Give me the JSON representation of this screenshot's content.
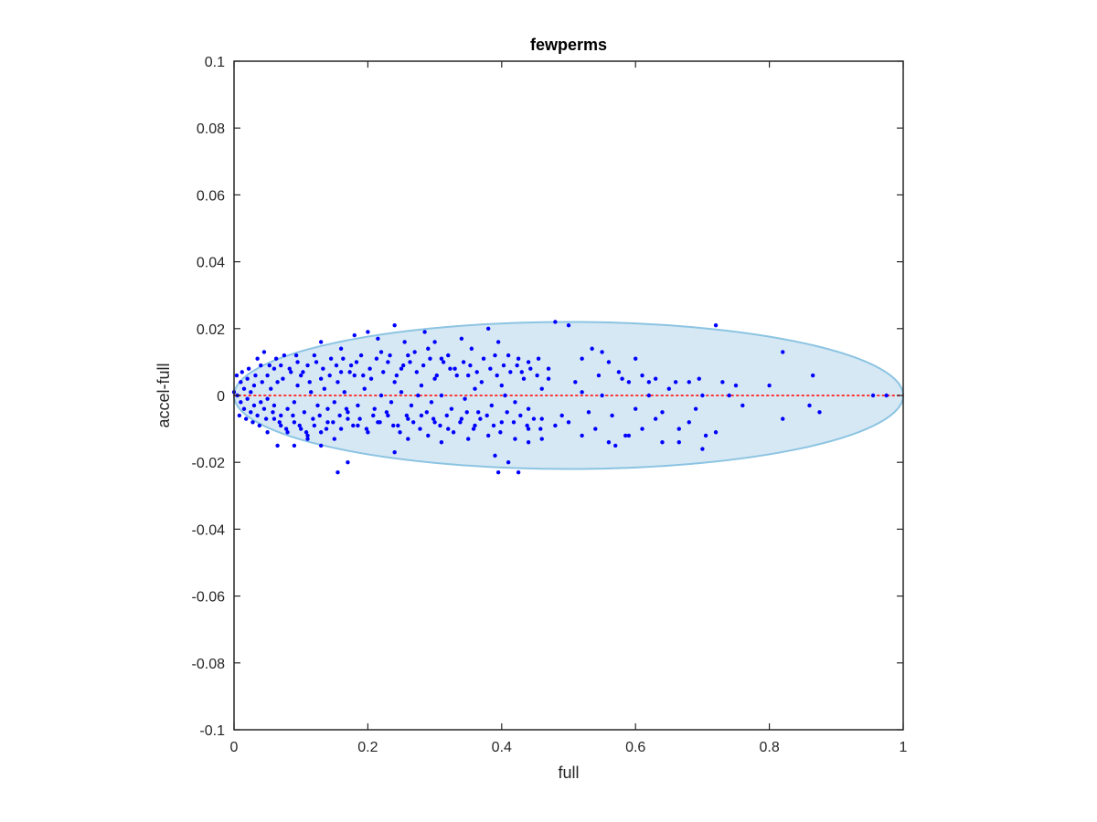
{
  "chart_data": {
    "type": "scatter",
    "title": "fewperms",
    "xlabel": "full",
    "ylabel": "accel-full",
    "xlim": [
      0,
      1
    ],
    "ylim": [
      -0.1,
      0.1
    ],
    "xticks": [
      0,
      0.2,
      0.4,
      0.6,
      0.8,
      1
    ],
    "xtick_labels": [
      "0",
      "0.2",
      "0.4",
      "0.6",
      "0.8",
      "1"
    ],
    "yticks": [
      -0.1,
      -0.08,
      -0.06,
      -0.04,
      -0.02,
      0,
      0.02,
      0.04,
      0.06,
      0.08,
      0.1
    ],
    "ytick_labels": [
      "-0.1",
      "-0.08",
      "-0.06",
      "-0.04",
      "-0.02",
      "0",
      "0.02",
      "0.04",
      "0.06",
      "0.08",
      "0.1"
    ],
    "grid": false,
    "colors": {
      "points": "#0000ff",
      "zero_line": "#ff3333",
      "ellipse_fill": "#d6e8f4",
      "ellipse_stroke": "#8cc4e2",
      "axes": "#262626"
    },
    "ellipse": {
      "center": [
        0.5,
        0
      ],
      "x_radius": 0.5,
      "y_radius": 0.022
    },
    "reference_line": {
      "y": 0,
      "x_range": [
        0,
        1
      ],
      "style": "dotted"
    },
    "series": [
      {
        "points": [
          [
            0.16,
            0.014
          ],
          [
            0.13,
            0.016
          ],
          [
            0.18,
            0.018
          ],
          [
            0.2,
            0.019
          ],
          [
            0.215,
            0.017
          ],
          [
            0.24,
            0.021
          ],
          [
            0.255,
            0.016
          ],
          [
            0.27,
            0.013
          ],
          [
            0.285,
            0.019
          ],
          [
            0.3,
            0.016
          ],
          [
            0.32,
            0.012
          ],
          [
            0.34,
            0.017
          ],
          [
            0.355,
            0.014
          ],
          [
            0.38,
            0.02
          ],
          [
            0.395,
            0.016
          ],
          [
            0.41,
            0.012
          ],
          [
            0.425,
            0.011
          ],
          [
            0.44,
            0.01
          ],
          [
            0.455,
            0.011
          ],
          [
            0.47,
            0.008
          ],
          [
            0.48,
            0.022
          ],
          [
            0.5,
            0.021
          ],
          [
            0.52,
            0.011
          ],
          [
            0.535,
            0.014
          ],
          [
            0.55,
            0.013
          ],
          [
            0.56,
            0.01
          ],
          [
            0.575,
            0.007
          ],
          [
            0.59,
            0.004
          ],
          [
            0.6,
            0.011
          ],
          [
            0.61,
            0.006
          ],
          [
            0.63,
            0.005
          ],
          [
            0.65,
            0.002
          ],
          [
            0.68,
            0.004
          ],
          [
            0.695,
            0.005
          ],
          [
            0.72,
            0.021
          ],
          [
            0.75,
            0.003
          ],
          [
            0.8,
            0.003
          ],
          [
            0.82,
            0.013
          ],
          [
            0.865,
            0.006
          ],
          [
            0.33,
            0.008
          ],
          [
            0.35,
            0.006
          ],
          [
            0.37,
            0.004
          ],
          [
            0.39,
            0.012
          ],
          [
            0.43,
            0.007
          ],
          [
            0.31,
            0.011
          ],
          [
            0.29,
            0.014
          ],
          [
            0.26,
            0.012
          ],
          [
            0.23,
            0.01
          ],
          [
            0.25,
            0.008
          ],
          [
            0.22,
            0.013
          ],
          [
            0.19,
            0.012
          ],
          [
            0.175,
            0.009
          ],
          [
            0.16,
            0.007
          ],
          [
            0.145,
            0.011
          ],
          [
            0.12,
            0.012
          ],
          [
            0.11,
            0.009
          ],
          [
            0.095,
            0.01
          ],
          [
            0.085,
            0.007
          ],
          [
            0.07,
            0.009
          ],
          [
            0.06,
            0.008
          ],
          [
            0.05,
            0.006
          ],
          [
            0.04,
            0.009
          ],
          [
            0.035,
            0.011
          ],
          [
            0.045,
            0.013
          ],
          [
            0.075,
            0.012
          ],
          [
            0.1,
            0.006
          ],
          [
            0.13,
            0.005
          ],
          [
            0.155,
            0.004
          ],
          [
            0.18,
            0.006
          ],
          [
            0.205,
            0.005
          ],
          [
            0.24,
            0.004
          ],
          [
            0.28,
            0.003
          ],
          [
            0.3,
            0.005
          ],
          [
            0.36,
            0.002
          ],
          [
            0.4,
            0.003
          ],
          [
            0.46,
            0.002
          ],
          [
            0.52,
            0.001
          ],
          [
            0.55,
            0.0
          ],
          [
            0.62,
            0.0
          ],
          [
            0.7,
            0.0
          ],
          [
            0.74,
            0.0
          ],
          [
            0.955,
            0.0
          ],
          [
            0.975,
            0.0
          ],
          [
            0.01,
            0.004
          ],
          [
            0.015,
            0.002
          ],
          [
            0.02,
            0.005
          ],
          [
            0.025,
            0.001
          ],
          [
            0.03,
            0.003
          ],
          [
            0.005,
            0.0
          ],
          [
            0.01,
            -0.002
          ],
          [
            0.015,
            -0.004
          ],
          [
            0.02,
            -0.001
          ],
          [
            0.025,
            -0.005
          ],
          [
            0.03,
            -0.003
          ],
          [
            0.035,
            -0.006
          ],
          [
            0.04,
            -0.002
          ],
          [
            0.045,
            -0.004
          ],
          [
            0.05,
            -0.001
          ],
          [
            0.055,
            0.002
          ],
          [
            0.06,
            -0.003
          ],
          [
            0.065,
            0.004
          ],
          [
            0.07,
            -0.006
          ],
          [
            0.08,
            -0.004
          ],
          [
            0.09,
            -0.002
          ],
          [
            0.095,
            0.003
          ],
          [
            0.105,
            -0.005
          ],
          [
            0.115,
            0.001
          ],
          [
            0.125,
            -0.003
          ],
          [
            0.135,
            0.002
          ],
          [
            0.14,
            -0.004
          ],
          [
            0.15,
            -0.002
          ],
          [
            0.165,
            0.001
          ],
          [
            0.17,
            -0.005
          ],
          [
            0.185,
            -0.003
          ],
          [
            0.195,
            0.002
          ],
          [
            0.21,
            -0.004
          ],
          [
            0.22,
            0.0
          ],
          [
            0.235,
            -0.002
          ],
          [
            0.25,
            0.001
          ],
          [
            0.265,
            -0.003
          ],
          [
            0.275,
            0.0
          ],
          [
            0.295,
            -0.002
          ],
          [
            0.31,
            0.0
          ],
          [
            0.325,
            -0.004
          ],
          [
            0.345,
            -0.001
          ],
          [
            0.365,
            -0.005
          ],
          [
            0.385,
            -0.003
          ],
          [
            0.405,
            0.0
          ],
          [
            0.42,
            -0.002
          ],
          [
            0.44,
            -0.004
          ],
          [
            0.06,
            -0.007
          ],
          [
            0.07,
            -0.009
          ],
          [
            0.08,
            -0.011
          ],
          [
            0.09,
            -0.008
          ],
          [
            0.1,
            -0.01
          ],
          [
            0.11,
            -0.012
          ],
          [
            0.12,
            -0.009
          ],
          [
            0.13,
            -0.011
          ],
          [
            0.14,
            -0.008
          ],
          [
            0.15,
            -0.013
          ],
          [
            0.16,
            -0.01
          ],
          [
            0.17,
            -0.007
          ],
          [
            0.185,
            -0.009
          ],
          [
            0.2,
            -0.011
          ],
          [
            0.215,
            -0.008
          ],
          [
            0.23,
            -0.006
          ],
          [
            0.245,
            -0.009
          ],
          [
            0.26,
            -0.007
          ],
          [
            0.28,
            -0.006
          ],
          [
            0.3,
            -0.008
          ],
          [
            0.32,
            -0.01
          ],
          [
            0.34,
            -0.007
          ],
          [
            0.36,
            -0.009
          ],
          [
            0.38,
            -0.012
          ],
          [
            0.4,
            -0.008
          ],
          [
            0.42,
            -0.013
          ],
          [
            0.44,
            -0.01
          ],
          [
            0.46,
            -0.007
          ],
          [
            0.48,
            -0.009
          ],
          [
            0.5,
            -0.008
          ],
          [
            0.52,
            -0.012
          ],
          [
            0.54,
            -0.01
          ],
          [
            0.56,
            -0.014
          ],
          [
            0.57,
            -0.015
          ],
          [
            0.59,
            -0.012
          ],
          [
            0.61,
            -0.01
          ],
          [
            0.63,
            -0.007
          ],
          [
            0.64,
            -0.014
          ],
          [
            0.665,
            -0.01
          ],
          [
            0.68,
            -0.008
          ],
          [
            0.705,
            -0.012
          ],
          [
            0.72,
            -0.011
          ],
          [
            0.7,
            -0.016
          ],
          [
            0.05,
            -0.011
          ],
          [
            0.065,
            -0.015
          ],
          [
            0.09,
            -0.015
          ],
          [
            0.11,
            -0.013
          ],
          [
            0.13,
            -0.015
          ],
          [
            0.155,
            -0.023
          ],
          [
            0.17,
            -0.02
          ],
          [
            0.24,
            -0.017
          ],
          [
            0.26,
            -0.013
          ],
          [
            0.29,
            -0.012
          ],
          [
            0.31,
            -0.014
          ],
          [
            0.35,
            -0.013
          ],
          [
            0.39,
            -0.018
          ],
          [
            0.395,
            -0.023
          ],
          [
            0.41,
            -0.02
          ],
          [
            0.425,
            -0.023
          ],
          [
            0.44,
            -0.014
          ],
          [
            0.46,
            -0.013
          ],
          [
            0.585,
            -0.012
          ],
          [
            0.665,
            -0.014
          ],
          [
            0.82,
            -0.007
          ],
          [
            0.86,
            -0.003
          ],
          [
            0.875,
            -0.005
          ],
          [
            0.0,
            0.001
          ],
          [
            0.004,
            0.006
          ],
          [
            0.008,
            -0.006
          ],
          [
            0.012,
            0.007
          ],
          [
            0.018,
            -0.007
          ],
          [
            0.022,
            0.008
          ],
          [
            0.028,
            -0.008
          ],
          [
            0.032,
            0.006
          ],
          [
            0.038,
            -0.009
          ],
          [
            0.042,
            0.004
          ],
          [
            0.048,
            -0.007
          ],
          [
            0.053,
            0.009
          ],
          [
            0.058,
            -0.005
          ],
          [
            0.063,
            0.011
          ],
          [
            0.068,
            -0.008
          ],
          [
            0.073,
            0.005
          ],
          [
            0.078,
            -0.01
          ],
          [
            0.083,
            0.008
          ],
          [
            0.088,
            -0.006
          ],
          [
            0.093,
            0.012
          ],
          [
            0.098,
            -0.009
          ],
          [
            0.103,
            0.007
          ],
          [
            0.108,
            -0.011
          ],
          [
            0.113,
            0.004
          ],
          [
            0.118,
            -0.007
          ],
          [
            0.123,
            0.01
          ],
          [
            0.128,
            -0.006
          ],
          [
            0.133,
            0.008
          ],
          [
            0.138,
            -0.01
          ],
          [
            0.143,
            0.006
          ],
          [
            0.148,
            -0.008
          ],
          [
            0.153,
            0.009
          ],
          [
            0.158,
            -0.006
          ],
          [
            0.163,
            0.011
          ],
          [
            0.168,
            -0.004
          ],
          [
            0.173,
            0.007
          ],
          [
            0.178,
            -0.009
          ],
          [
            0.183,
            0.01
          ],
          [
            0.188,
            -0.007
          ],
          [
            0.193,
            0.006
          ],
          [
            0.198,
            -0.01
          ],
          [
            0.203,
            0.008
          ],
          [
            0.208,
            -0.006
          ],
          [
            0.213,
            0.011
          ],
          [
            0.218,
            -0.008
          ],
          [
            0.223,
            0.007
          ],
          [
            0.228,
            -0.005
          ],
          [
            0.233,
            0.012
          ],
          [
            0.238,
            -0.009
          ],
          [
            0.243,
            0.006
          ],
          [
            0.248,
            -0.011
          ],
          [
            0.253,
            0.009
          ],
          [
            0.258,
            -0.006
          ],
          [
            0.263,
            0.01
          ],
          [
            0.268,
            -0.008
          ],
          [
            0.273,
            0.007
          ],
          [
            0.278,
            -0.01
          ],
          [
            0.283,
            0.009
          ],
          [
            0.288,
            -0.005
          ],
          [
            0.293,
            0.011
          ],
          [
            0.298,
            -0.007
          ],
          [
            0.303,
            0.006
          ],
          [
            0.308,
            -0.009
          ],
          [
            0.313,
            0.01
          ],
          [
            0.318,
            -0.006
          ],
          [
            0.323,
            0.008
          ],
          [
            0.328,
            -0.011
          ],
          [
            0.333,
            0.006
          ],
          [
            0.338,
            -0.008
          ],
          [
            0.343,
            0.01
          ],
          [
            0.348,
            -0.005
          ],
          [
            0.353,
            0.009
          ],
          [
            0.358,
            -0.01
          ],
          [
            0.363,
            0.007
          ],
          [
            0.368,
            -0.007
          ],
          [
            0.373,
            0.011
          ],
          [
            0.378,
            -0.006
          ],
          [
            0.383,
            0.008
          ],
          [
            0.388,
            -0.009
          ],
          [
            0.393,
            0.006
          ],
          [
            0.398,
            -0.011
          ],
          [
            0.403,
            0.009
          ],
          [
            0.408,
            -0.005
          ],
          [
            0.413,
            0.007
          ],
          [
            0.418,
            -0.008
          ],
          [
            0.423,
            0.009
          ],
          [
            0.428,
            -0.006
          ],
          [
            0.433,
            0.005
          ],
          [
            0.438,
            -0.009
          ],
          [
            0.443,
            0.008
          ],
          [
            0.448,
            -0.007
          ],
          [
            0.453,
            0.006
          ],
          [
            0.458,
            -0.01
          ],
          [
            0.47,
            0.005
          ],
          [
            0.49,
            -0.006
          ],
          [
            0.51,
            0.004
          ],
          [
            0.53,
            -0.005
          ],
          [
            0.545,
            0.006
          ],
          [
            0.565,
            -0.006
          ],
          [
            0.58,
            0.005
          ],
          [
            0.6,
            -0.004
          ],
          [
            0.62,
            0.004
          ],
          [
            0.64,
            -0.005
          ],
          [
            0.66,
            0.004
          ],
          [
            0.69,
            -0.004
          ],
          [
            0.73,
            0.004
          ],
          [
            0.76,
            -0.003
          ]
        ]
      }
    ]
  }
}
